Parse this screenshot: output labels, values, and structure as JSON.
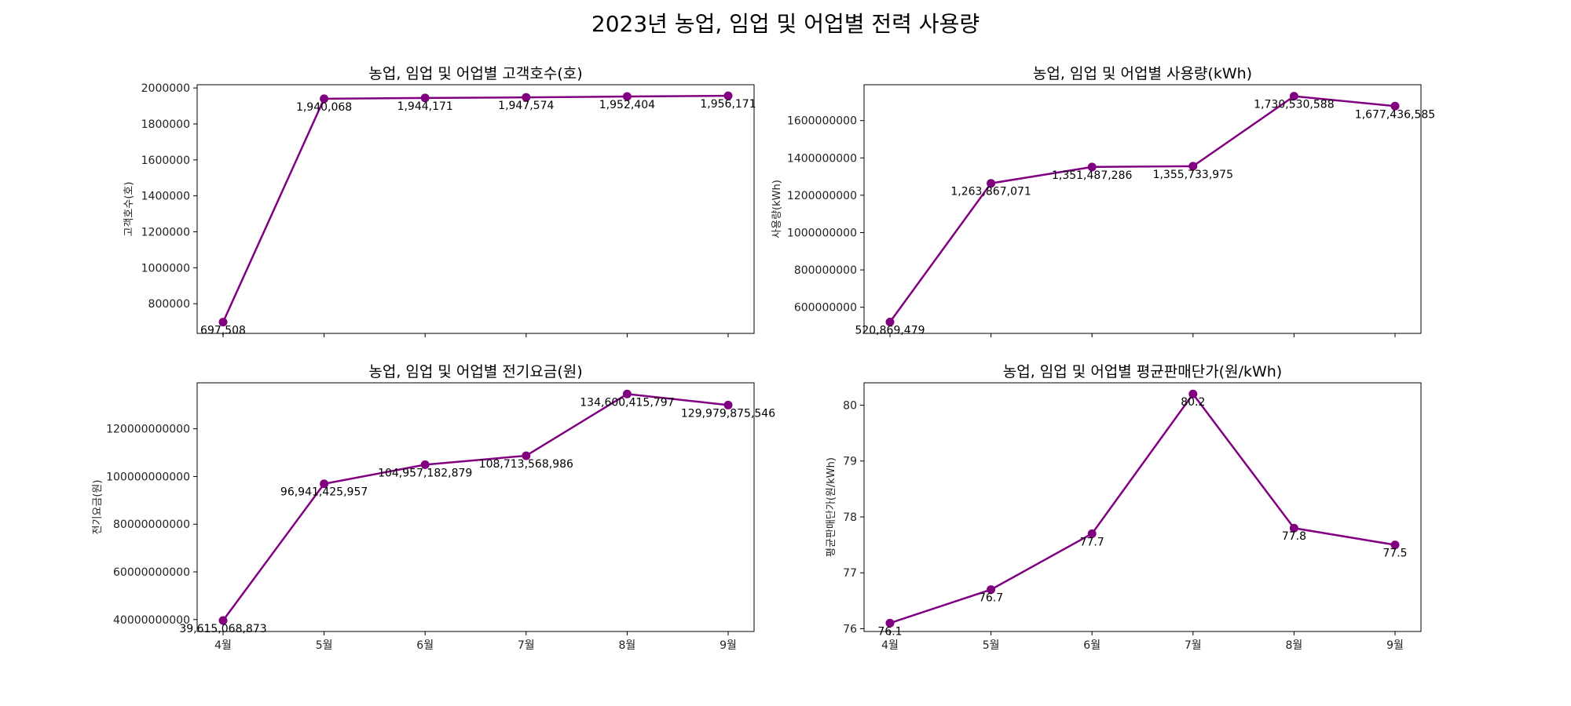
{
  "figure_title": "2023년 농업, 임업 및 어업별 전력 사용량",
  "style": {
    "line_color": "#800080",
    "marker_color": "#800080"
  },
  "chart_data": [
    {
      "type": "line",
      "title": "농업, 임업 및 어업별 고객호수(호)",
      "xlabel": "",
      "ylabel": "고객호수(호)",
      "categories": [
        "4월",
        "5월",
        "6월",
        "7월",
        "8월",
        "9월"
      ],
      "values": [
        697508,
        1940068,
        1944171,
        1947574,
        1952404,
        1956171
      ],
      "labels": [
        "697,508",
        "1,940,068",
        "1,944,171",
        "1,947,574",
        "1,952,404",
        "1,956,171"
      ],
      "ylim": [
        635000,
        2018000
      ],
      "yticks": [
        800000,
        1000000,
        1200000,
        1400000,
        1600000,
        1800000,
        2000000
      ],
      "ytick_labels": [
        "800000",
        "1000000",
        "1200000",
        "1400000",
        "1600000",
        "1800000",
        "2000000"
      ],
      "show_xticklabels": false
    },
    {
      "type": "line",
      "title": "농업, 임업 및 어업별 사용량(kWh)",
      "xlabel": "",
      "ylabel": "사용량(kWh)",
      "categories": [
        "4월",
        "5월",
        "6월",
        "7월",
        "8월",
        "9월"
      ],
      "values": [
        520869479,
        1263867071,
        1351487286,
        1355733975,
        1730530588,
        1677436585
      ],
      "labels": [
        "520,869,479",
        "1,263,867,071",
        "1,351,487,286",
        "1,355,733,975",
        "1,730,530,588",
        "1,677,436,585"
      ],
      "ylim": [
        460000000,
        1792000000
      ],
      "yticks": [
        600000000,
        800000000,
        1000000000,
        1200000000,
        1400000000,
        1600000000
      ],
      "ytick_labels": [
        "600000000",
        "800000000",
        "1000000000",
        "1200000000",
        "1400000000",
        "1600000000"
      ],
      "show_xticklabels": false
    },
    {
      "type": "line",
      "title": "농업, 임업 및 어업별 전기요금(원)",
      "xlabel": "",
      "ylabel": "전기요금(원)",
      "categories": [
        "4월",
        "5월",
        "6월",
        "7월",
        "8월",
        "9월"
      ],
      "values": [
        39615068873,
        96941425957,
        104957182879,
        108713568986,
        134600415797,
        129979875546
      ],
      "labels": [
        "39,615,068,873",
        "96,941,425,957",
        "104,957,182,879",
        "108,713,568,986",
        "134,600,415,797",
        "129,979,875,546"
      ],
      "ylim": [
        35000000000,
        139300000000
      ],
      "yticks": [
        40000000000,
        60000000000,
        80000000000,
        100000000000,
        120000000000
      ],
      "ytick_labels": [
        "40000000000",
        "60000000000",
        "80000000000",
        "100000000000",
        "120000000000"
      ],
      "show_xticklabels": true
    },
    {
      "type": "line",
      "title": "농업, 임업 및 어업별 평균판매단가(원/kWh)",
      "xlabel": "",
      "ylabel": "평균판매단가(원/kWh)",
      "categories": [
        "4월",
        "5월",
        "6월",
        "7월",
        "8월",
        "9월"
      ],
      "values": [
        76.1,
        76.7,
        77.7,
        80.2,
        77.8,
        77.5
      ],
      "labels": [
        "76.1",
        "76.7",
        "77.7",
        "80.2",
        "77.8",
        "77.5"
      ],
      "ylim": [
        75.95,
        80.4
      ],
      "yticks": [
        76,
        77,
        78,
        79,
        80
      ],
      "ytick_labels": [
        "76",
        "77",
        "78",
        "79",
        "80"
      ],
      "show_xticklabels": true
    }
  ]
}
